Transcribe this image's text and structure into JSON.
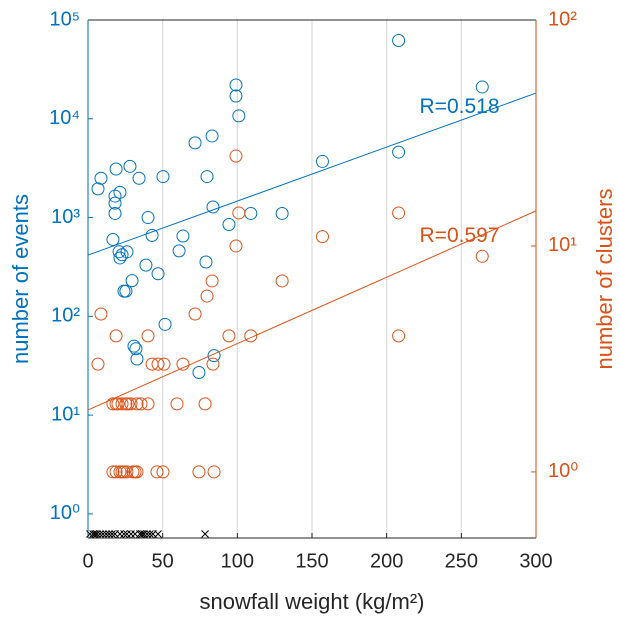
{
  "chart_data": {
    "type": "scatter",
    "xlabel": "snowfall weight (kg/m²)",
    "ylabel": "number of events",
    "y2label": "number of clusters",
    "xlim": [
      0,
      300
    ],
    "xticks": [
      0,
      50,
      100,
      150,
      200,
      250,
      300
    ],
    "ylim": [
      0.57,
      100000
    ],
    "ylog": true,
    "yticks": [
      {
        "value": 1,
        "label": "10⁰"
      },
      {
        "value": 10,
        "label": "10¹"
      },
      {
        "value": 100,
        "label": "10²"
      },
      {
        "value": 1000,
        "label": "10³"
      },
      {
        "value": 10000,
        "label": "10⁴"
      },
      {
        "value": 100000,
        "label": "10⁵"
      }
    ],
    "y2lim": [
      0.51,
      100
    ],
    "y2log": true,
    "y2ticks": [
      {
        "value": 1,
        "label": "10⁰"
      },
      {
        "value": 10,
        "label": "10¹"
      },
      {
        "value": 100,
        "label": "10²"
      }
    ],
    "grid": "x",
    "series": [
      {
        "axis": "y",
        "color": "#0072BD",
        "x": [
          6.7,
          8.7,
          18.8,
          28.1,
          34.2,
          50.2,
          18.1,
          21.4,
          18.1,
          18.1,
          40.2,
          16.7,
          42.9,
          20.8,
          22.8,
          26.1,
          21.4,
          38.8,
          46.9,
          29.5,
          24.1,
          25.4,
          51.6,
          30.8,
          32.1,
          32.8,
          71.7,
          83.1,
          79.7,
          61.0,
          63.6,
          79.0,
          83.7,
          94.4,
          99.1,
          99.1,
          101,
          109,
          130,
          74.3,
          84.4,
          157,
          208,
          208,
          264
        ],
        "values": [
          1950,
          2500,
          3100,
          3300,
          2500,
          2600,
          1650,
          1800,
          1400,
          1100,
          1000,
          600,
          660,
          450,
          420,
          450,
          390,
          330,
          270,
          230,
          180,
          180,
          83,
          50,
          47,
          37,
          5700,
          6700,
          2600,
          460,
          650,
          355,
          1280,
          850,
          22000,
          17000,
          10700,
          1100,
          1100,
          27,
          40,
          3700,
          62000,
          4600,
          21000
        ],
        "fit": [
          417,
          18200
        ],
        "annotation": {
          "text": "R=0.518",
          "x": 222,
          "y": 13000
        }
      },
      {
        "axis": "y2",
        "color": "#D95319",
        "x": [
          16.7,
          18.8,
          21.4,
          22.8,
          24.1,
          26.1,
          30.1,
          31.5,
          32.8,
          46.2,
          50.2,
          74.3,
          84.4,
          16.7,
          18.8,
          20.1,
          22.8,
          25.4,
          26.8,
          28.8,
          32.8,
          35.5,
          40.2,
          59.6,
          78.4,
          6.7,
          42.9,
          46.9,
          50.9,
          63.6,
          83.7,
          18.8,
          40.2,
          94.4,
          109,
          208,
          8.7,
          71.7,
          79.7,
          83.1,
          130,
          99.1,
          101,
          157,
          208,
          264,
          99.1
        ],
        "values": [
          1,
          1,
          1,
          1,
          1,
          1,
          1,
          1,
          1,
          1,
          1,
          1,
          1,
          2,
          2,
          2,
          2,
          2,
          2,
          2,
          2,
          2,
          2,
          2,
          2,
          3,
          3,
          3,
          3,
          3,
          3,
          4,
          4,
          4,
          4,
          4,
          5,
          5,
          6,
          7,
          7,
          10,
          14,
          11,
          14,
          9,
          25
        ],
        "fit": [
          1.88,
          14.3
        ],
        "annotation": {
          "text": "R=0.597",
          "x": 222,
          "y": 11
        }
      }
    ],
    "zero_events_x": [
      1.3,
      3.4,
      4.7,
      6.0,
      8.0,
      10.0,
      12.1,
      14.1,
      16.1,
      18.1,
      21.4,
      24.1,
      26.1,
      28.8,
      31.5,
      34.8,
      36.2,
      37.5,
      39.5,
      41.5,
      43.5,
      46.9,
      78.4
    ]
  }
}
